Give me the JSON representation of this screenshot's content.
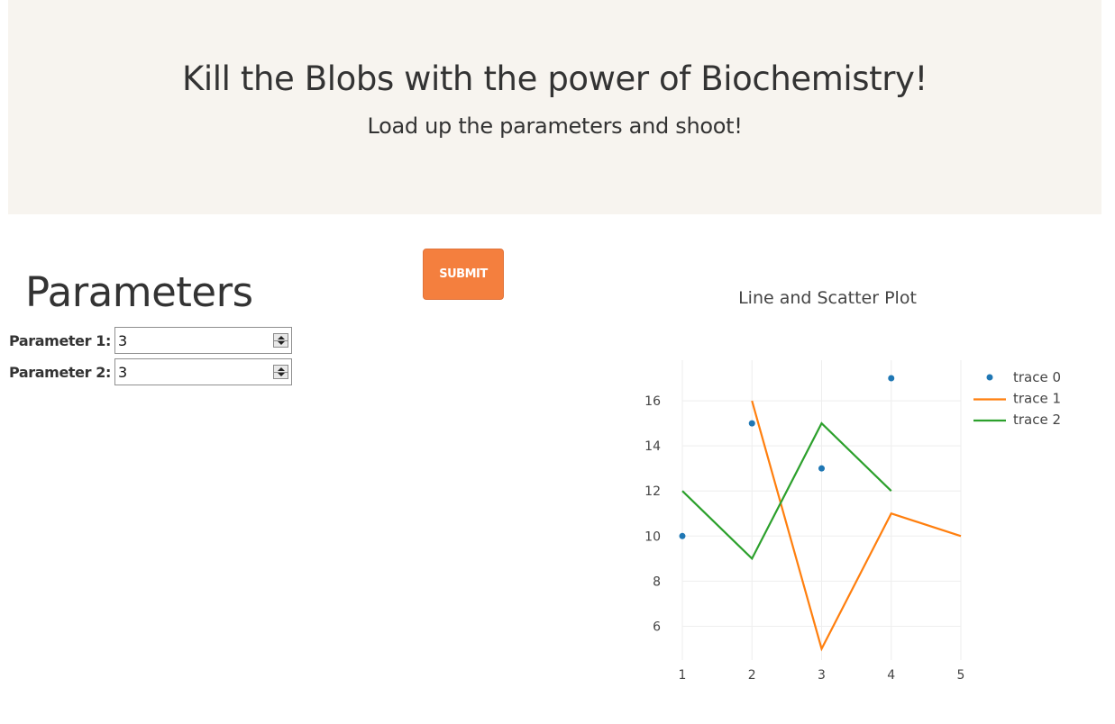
{
  "hero": {
    "title": "Kill the Blobs with the power of Biochemistry!",
    "subtitle": "Load up the parameters and shoot!"
  },
  "params": {
    "heading": "Parameters",
    "submit_label": "SUBMIT",
    "fields": [
      {
        "label": "Parameter 1:",
        "value": "3"
      },
      {
        "label": "Parameter 2:",
        "value": "3"
      }
    ]
  },
  "colors": {
    "hero_bg": "#f7f4ef",
    "submit": "#f47f3e",
    "trace0": "#1f77b4",
    "trace1": "#ff7f0e",
    "trace2": "#2ca02c"
  },
  "chart_data": {
    "type": "line",
    "title": "Line and Scatter Plot",
    "xlabel": "",
    "ylabel": "",
    "xlim": [
      1,
      5
    ],
    "ylim": [
      4.5,
      17.8
    ],
    "xticks": [
      "1",
      "2",
      "3",
      "4",
      "5"
    ],
    "yticks": [
      "6",
      "8",
      "10",
      "12",
      "14",
      "16"
    ],
    "grid": true,
    "legend": "top-right",
    "series": [
      {
        "name": "trace 0",
        "mode": "markers",
        "x": [
          1,
          2,
          3,
          4
        ],
        "y": [
          10,
          15,
          13,
          17
        ]
      },
      {
        "name": "trace 1",
        "mode": "lines",
        "x": [
          2,
          3,
          4,
          5
        ],
        "y": [
          16,
          5,
          11,
          10
        ]
      },
      {
        "name": "trace 2",
        "mode": "lines",
        "x": [
          1,
          2,
          3,
          4
        ],
        "y": [
          12,
          9,
          15,
          12
        ]
      }
    ]
  }
}
